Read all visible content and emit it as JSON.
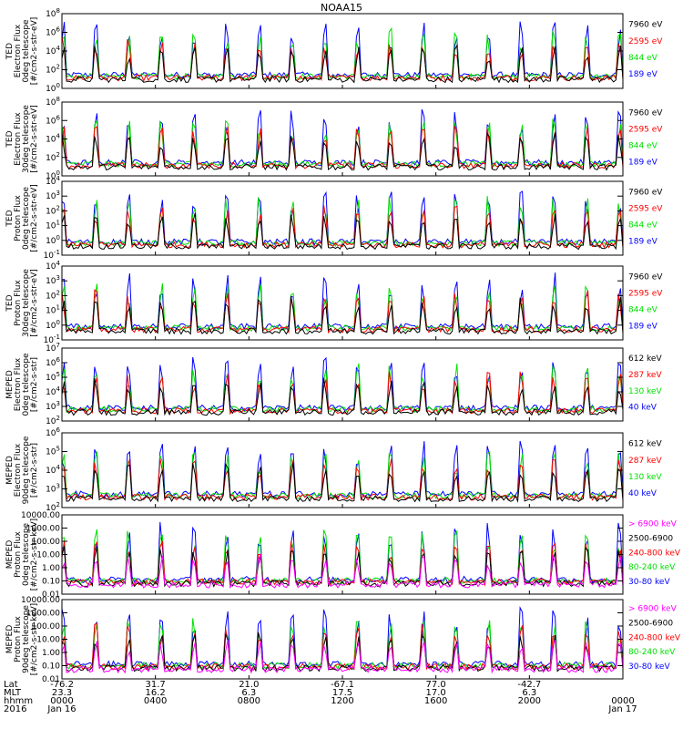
{
  "title": "NOAA15",
  "colors": {
    "black": "#000000",
    "red": "#ff0000",
    "green": "#00e000",
    "blue": "#0000ff",
    "magenta": "#ff00ff"
  },
  "chart_data": [
    {
      "type": "line",
      "ylabel": [
        "TED",
        "Electron Flux",
        "0deg telescope",
        "[#/cm2-s-str-eV]"
      ],
      "ytick_labels": [
        "10^0",
        "10^2",
        "10^4",
        "10^6",
        "10^8"
      ],
      "ytick_values": [
        1,
        100,
        10000,
        1000000,
        100000000
      ],
      "ylim": [
        1,
        100000000
      ],
      "yscale": "log",
      "legend": [
        {
          "name": "7960 eV",
          "color": "#000000"
        },
        {
          "name": "2595 eV",
          "color": "#ff0000"
        },
        {
          "name": "844 eV",
          "color": "#00e000"
        },
        {
          "name": "189 eV",
          "color": "#0000ff"
        }
      ]
    },
    {
      "type": "line",
      "ylabel": [
        "TED",
        "Electron Flux",
        "30deg telescope",
        "[#/cm2-s-str-eV]"
      ],
      "ytick_labels": [
        "10^0",
        "10^2",
        "10^4",
        "10^6",
        "10^8"
      ],
      "ytick_values": [
        1,
        100,
        10000,
        1000000,
        100000000
      ],
      "ylim": [
        1,
        100000000
      ],
      "yscale": "log",
      "legend": [
        {
          "name": "7960 eV",
          "color": "#000000"
        },
        {
          "name": "2595 eV",
          "color": "#ff0000"
        },
        {
          "name": "844 eV",
          "color": "#00e000"
        },
        {
          "name": "189 eV",
          "color": "#0000ff"
        }
      ]
    },
    {
      "type": "line",
      "ylabel": [
        "TED",
        "Proton Flux",
        "0deg telescope",
        "[#/cm2-s-str-eV]"
      ],
      "ytick_labels": [
        "10^-1",
        "10^0",
        "10^1",
        "10^2",
        "10^3",
        "10^4"
      ],
      "ytick_values": [
        0.1,
        1,
        10,
        100,
        1000,
        10000
      ],
      "ylim": [
        0.1,
        10000
      ],
      "yscale": "log",
      "legend": [
        {
          "name": "7960 eV",
          "color": "#000000"
        },
        {
          "name": "2595 eV",
          "color": "#ff0000"
        },
        {
          "name": "844 eV",
          "color": "#00e000"
        },
        {
          "name": "189 eV",
          "color": "#0000ff"
        }
      ]
    },
    {
      "type": "line",
      "ylabel": [
        "TED",
        "Proton Flux",
        "30deg telescope",
        "[#/cm2-s-str-eV]"
      ],
      "ytick_labels": [
        "10^-1",
        "10^0",
        "10^1",
        "10^2",
        "10^3",
        "10^4"
      ],
      "ytick_values": [
        0.1,
        1,
        10,
        100,
        1000,
        10000
      ],
      "ylim": [
        0.1,
        10000
      ],
      "yscale": "log",
      "legend": [
        {
          "name": "7960 eV",
          "color": "#000000"
        },
        {
          "name": "2595 eV",
          "color": "#ff0000"
        },
        {
          "name": "844 eV",
          "color": "#00e000"
        },
        {
          "name": "189 eV",
          "color": "#0000ff"
        }
      ]
    },
    {
      "type": "line",
      "ylabel": [
        "MEPED",
        "Electron Flux",
        "0deg telescope",
        "[#/cm2-s-str]"
      ],
      "ytick_labels": [
        "10^2",
        "10^3",
        "10^4",
        "10^5",
        "10^6",
        "10^7"
      ],
      "ytick_values": [
        100,
        1000,
        10000,
        100000,
        1000000,
        10000000
      ],
      "ylim": [
        100,
        10000000
      ],
      "yscale": "log",
      "legend": [
        {
          "name": "612 keV",
          "color": "#000000"
        },
        {
          "name": "287 keV",
          "color": "#ff0000"
        },
        {
          "name": "130 keV",
          "color": "#00e000"
        },
        {
          "name": "40 keV",
          "color": "#0000ff"
        }
      ]
    },
    {
      "type": "line",
      "ylabel": [
        "MEPED",
        "Electron Flux",
        "90deg telescope",
        "[#/cm2-s-str]"
      ],
      "ytick_labels": [
        "10^2",
        "10^3",
        "10^4",
        "10^5",
        "10^6"
      ],
      "ytick_values": [
        100,
        1000,
        10000,
        100000,
        1000000
      ],
      "ylim": [
        100,
        1000000
      ],
      "yscale": "log",
      "legend": [
        {
          "name": "612 keV",
          "color": "#000000"
        },
        {
          "name": "287 keV",
          "color": "#ff0000"
        },
        {
          "name": "130 keV",
          "color": "#00e000"
        },
        {
          "name": "40 keV",
          "color": "#0000ff"
        }
      ]
    },
    {
      "type": "line",
      "ylabel": [
        "MEPED",
        "Proton Flux",
        "0deg telescope",
        "[#/cm2-s-str-keV]"
      ],
      "ytick_labels": [
        "0.01",
        "0.10",
        "1.00",
        "10.00",
        "100.00",
        "1000.00",
        "10000.00"
      ],
      "ytick_values": [
        0.01,
        0.1,
        1,
        10,
        100,
        1000,
        10000
      ],
      "ylim": [
        0.01,
        10000
      ],
      "yscale": "log",
      "legend": [
        {
          "name": "> 6900 keV",
          "color": "#ff00ff"
        },
        {
          "name": "2500-6900",
          "color": "#000000"
        },
        {
          "name": "240-800 keV",
          "color": "#ff0000"
        },
        {
          "name": "80-240 keV",
          "color": "#00e000"
        },
        {
          "name": "30-80 keV",
          "color": "#0000ff"
        }
      ]
    },
    {
      "type": "line",
      "ylabel": [
        "MEPED",
        "Proton Flux",
        "90deg telescope",
        "[#/cm2-s-str-keV]"
      ],
      "ytick_labels": [
        "0.01",
        "0.10",
        "1.00",
        "10.00",
        "100.00",
        "1000.00",
        "10000.00"
      ],
      "ytick_values": [
        0.01,
        0.1,
        1,
        10,
        100,
        1000,
        10000
      ],
      "ylim": [
        0.01,
        10000
      ],
      "yscale": "log",
      "legend": [
        {
          "name": "> 6900 keV",
          "color": "#ff00ff"
        },
        {
          "name": "2500-6900",
          "color": "#000000"
        },
        {
          "name": "240-800 keV",
          "color": "#ff0000"
        },
        {
          "name": "80-240 keV",
          "color": "#00e000"
        },
        {
          "name": "30-80 keV",
          "color": "#0000ff"
        }
      ]
    }
  ],
  "x_axis": {
    "row_labels": [
      "Lat",
      "MLT",
      "hhmm",
      "2016"
    ],
    "ticks": [
      {
        "lat": "-76.2",
        "mlt": "23.3",
        "hhmm": "0000",
        "date": "Jan 16"
      },
      {
        "lat": "31.7",
        "mlt": "16.2",
        "hhmm": "0400",
        "date": ""
      },
      {
        "lat": "21.0",
        "mlt": "6.3",
        "hhmm": "0800",
        "date": ""
      },
      {
        "lat": "-67.1",
        "mlt": "17.5",
        "hhmm": "1200",
        "date": ""
      },
      {
        "lat": "77.0",
        "mlt": "17.0",
        "hhmm": "1600",
        "date": ""
      },
      {
        "lat": "-42.7",
        "mlt": "6.3",
        "hhmm": "2000",
        "date": ""
      },
      {
        "lat": "",
        "mlt": "",
        "hhmm": "0000",
        "date": "Jan 17"
      }
    ]
  }
}
